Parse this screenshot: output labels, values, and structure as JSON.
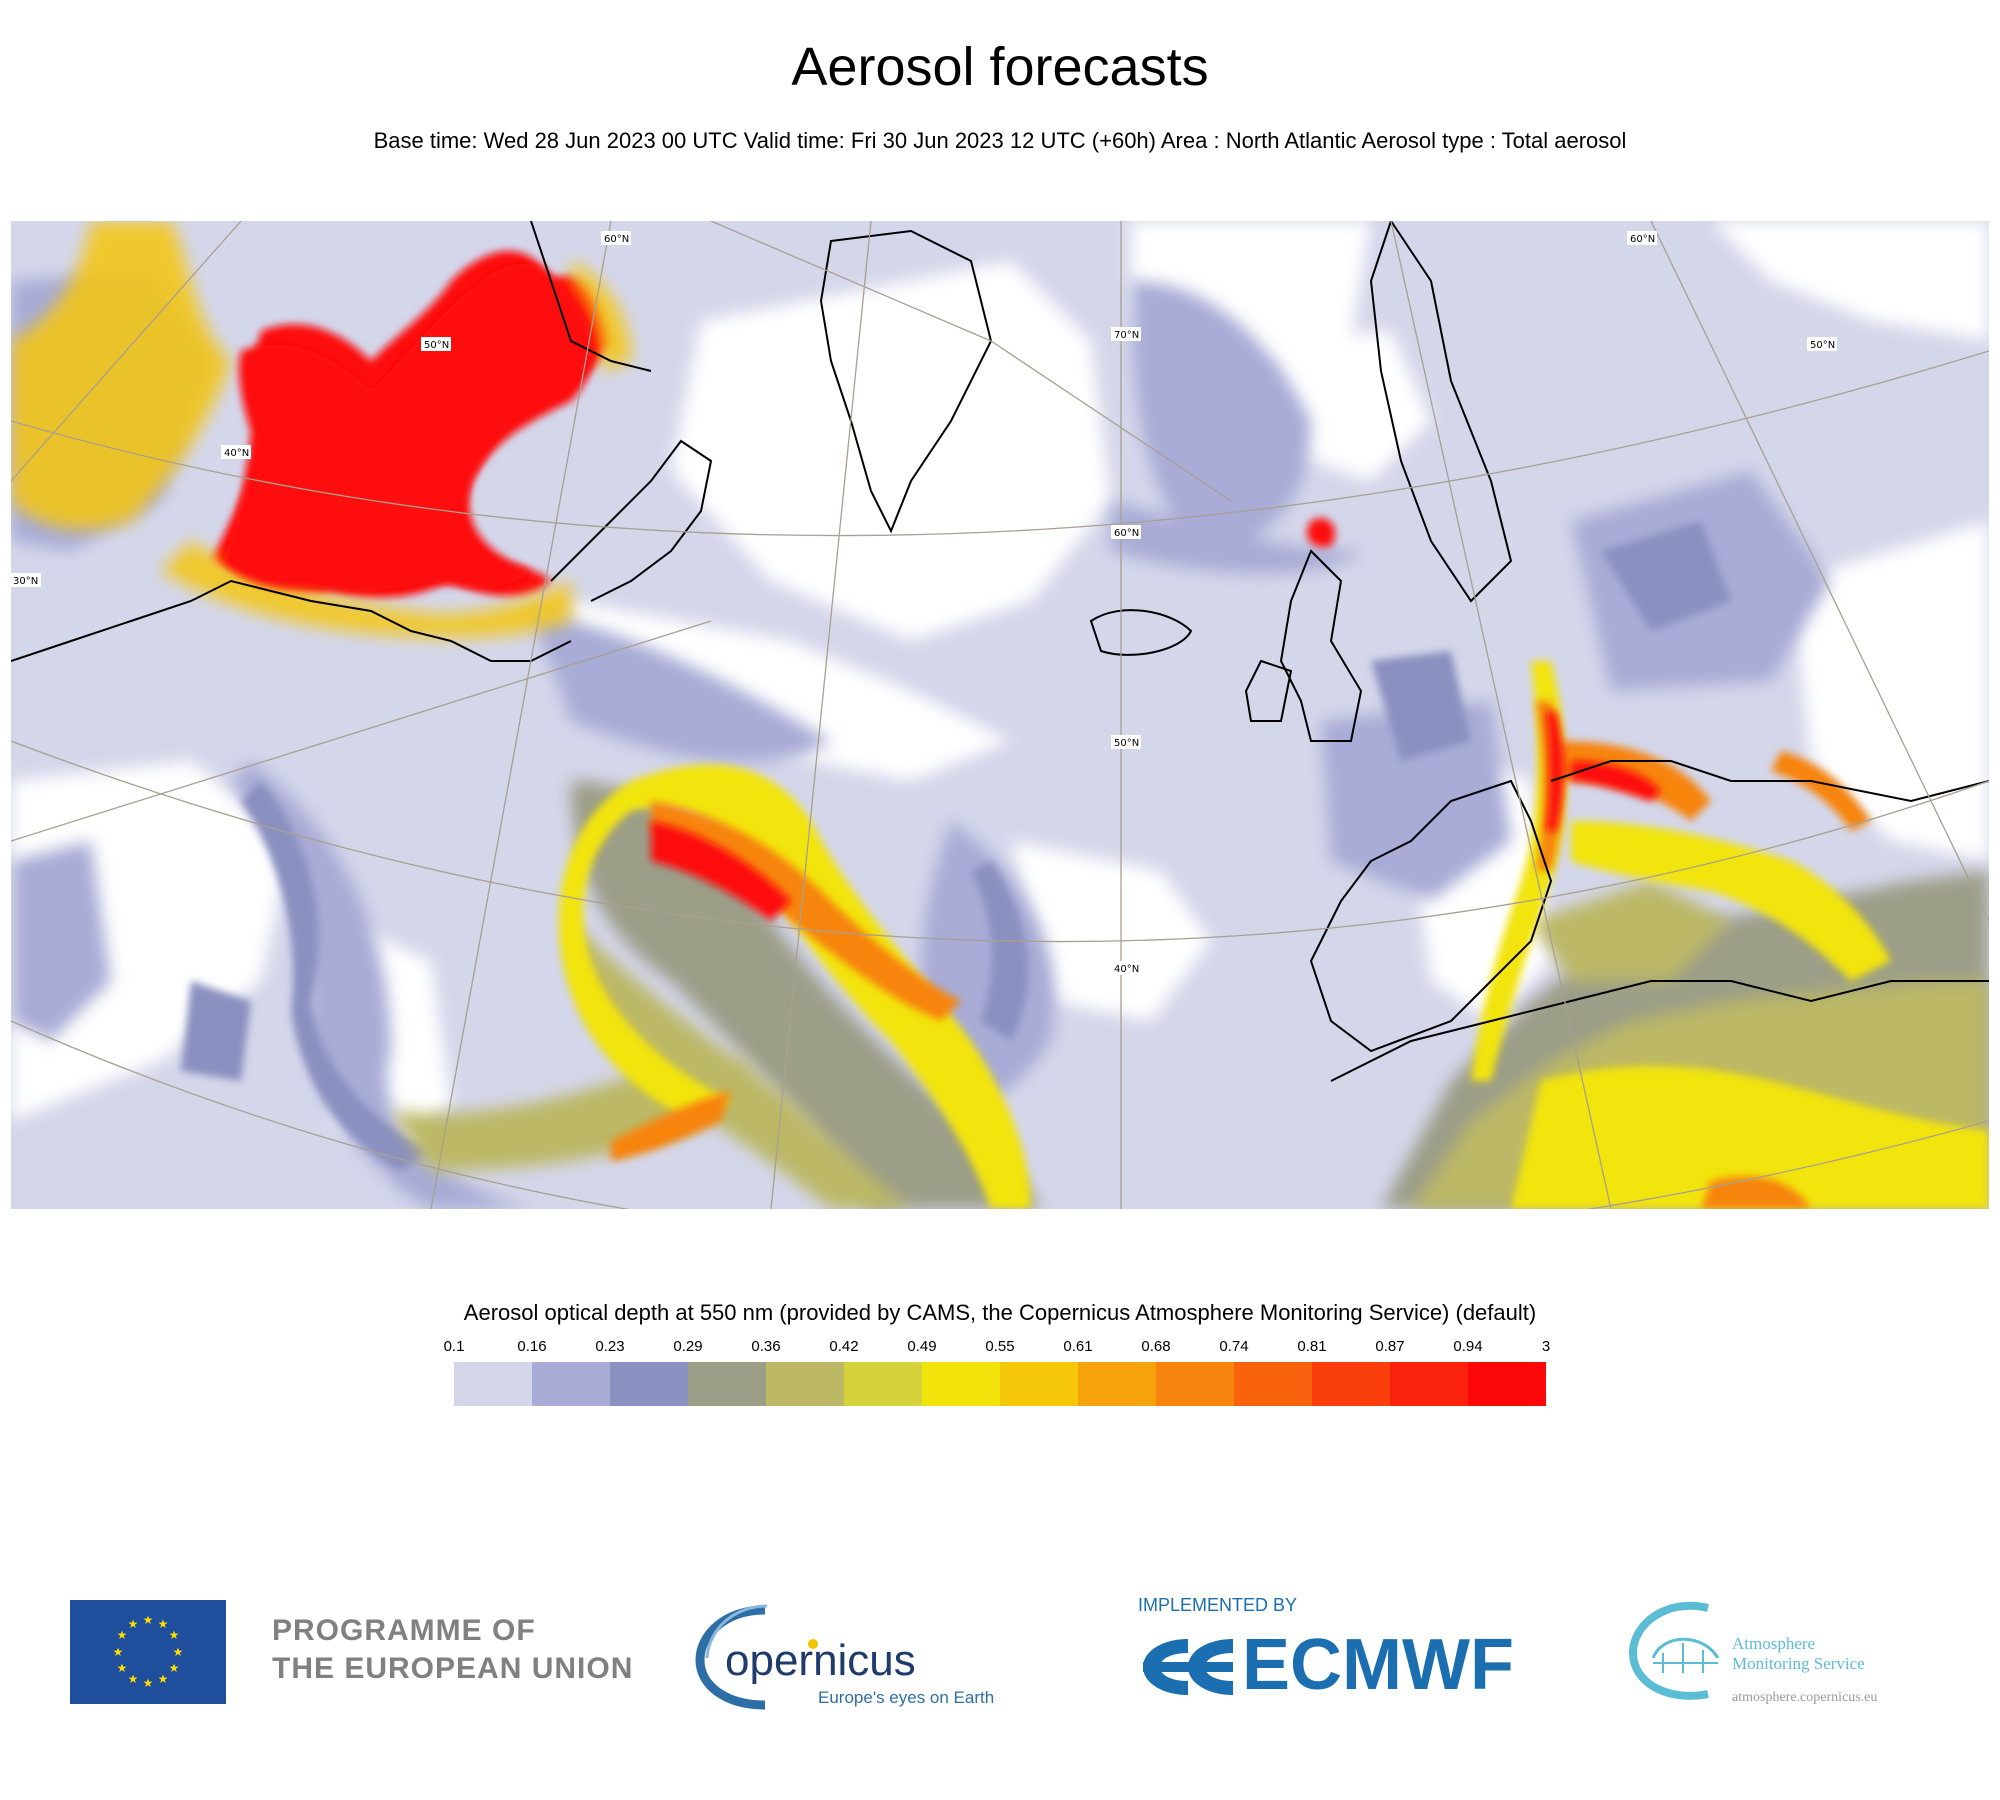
{
  "header": {
    "title": "Aerosol forecasts",
    "subtitle": "Base time: Wed 28 Jun 2023 00 UTC Valid time: Fri 30 Jun 2023 12 UTC (+60h) Area : North Atlantic Aerosol type : Total aerosol"
  },
  "map": {
    "lat_labels_left": [
      "50°N",
      "40°N",
      "30°N"
    ],
    "lat_labels_center": [
      "70°N",
      "60°N",
      "50°N",
      "40°N"
    ],
    "lat_labels_right": [
      "60°N",
      "60°N",
      "50°N"
    ],
    "colors": {
      "ocean_base": "#ffffff",
      "coast": "#000000",
      "grid": "#a8a090"
    }
  },
  "legend": {
    "title": "Aerosol optical depth at 550 nm (provided by CAMS, the Copernicus Atmosphere Monitoring Service) (default)",
    "ticks": [
      "0.1",
      "0.16",
      "0.23",
      "0.29",
      "0.36",
      "0.42",
      "0.49",
      "0.55",
      "0.61",
      "0.68",
      "0.74",
      "0.81",
      "0.87",
      "0.94",
      "3"
    ],
    "colors": [
      "#d4d6ea",
      "#a8acd6",
      "#8a90c0",
      "#9c9e88",
      "#bcb866",
      "#d6d23c",
      "#f2e40a",
      "#f6c608",
      "#f6a20a",
      "#f7840c",
      "#f9620c",
      "#fa3e0c",
      "#fb220c",
      "#fd0808"
    ]
  },
  "footer": {
    "eu_line1": "PROGRAMME OF",
    "eu_line2": "THE EUROPEAN UNION",
    "copernicus_name": "opernicus",
    "copernicus_tagline": "Europe's eyes on Earth",
    "ecmwf_implemented": "IMPLEMENTED BY",
    "ecmwf_name": "ECMWF",
    "ams_line1": "Atmosphere",
    "ams_line2": "Monitoring Service",
    "ams_url": "atmosphere.copernicus.eu"
  }
}
